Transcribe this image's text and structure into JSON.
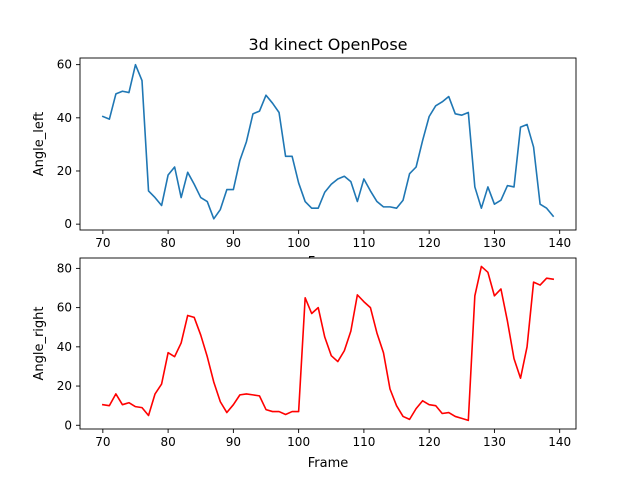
{
  "chart_data": [
    {
      "type": "line",
      "title": "3d kinect OpenPose",
      "xlabel": "Frame",
      "ylabel": "Angle_left",
      "xlim": [
        66.5,
        142.5
      ],
      "ylim": [
        -2.2,
        62.5
      ],
      "xticks": [
        70,
        80,
        90,
        100,
        110,
        120,
        130,
        140
      ],
      "yticks": [
        0,
        20,
        40,
        60
      ],
      "grid": false,
      "series": [
        {
          "color": "#1f77b4",
          "x": [
            70,
            71,
            72,
            73,
            74,
            75,
            76,
            77,
            78,
            79,
            80,
            81,
            82,
            83,
            84,
            85,
            86,
            87,
            88,
            89,
            90,
            91,
            92,
            93,
            94,
            95,
            96,
            97,
            98,
            99,
            100,
            101,
            102,
            103,
            104,
            105,
            106,
            107,
            108,
            109,
            110,
            111,
            112,
            113,
            114,
            115,
            116,
            117,
            118,
            119,
            120,
            121,
            122,
            123,
            124,
            125,
            126,
            127,
            128,
            129,
            130,
            131,
            132,
            133,
            134,
            135,
            136,
            137,
            138,
            139
          ],
          "y": [
            40.5,
            39.5,
            49,
            50,
            49.5,
            60,
            54,
            12.5,
            10,
            7,
            18.5,
            21.5,
            10,
            19.5,
            15,
            10,
            8.5,
            2,
            5.5,
            13,
            13,
            24,
            31,
            41.5,
            42.5,
            48.5,
            45.5,
            42,
            25.5,
            25.5,
            15.5,
            8.5,
            6,
            6,
            12,
            15,
            17,
            18,
            16,
            8.5,
            17,
            12.5,
            8.5,
            6.5,
            6.5,
            6,
            9,
            19,
            21.5,
            31.5,
            40.5,
            44.5,
            46,
            48,
            41.5,
            41,
            42,
            14,
            6,
            14,
            7.5,
            9,
            14.5,
            14,
            36.5,
            37.5,
            29,
            7.5,
            6,
            3
          ]
        }
      ]
    },
    {
      "type": "line",
      "title": "",
      "xlabel": "Frame",
      "ylabel": "Angle_right",
      "xlim": [
        66.5,
        142.5
      ],
      "ylim": [
        -1.9,
        85.3
      ],
      "xticks": [
        70,
        80,
        90,
        100,
        110,
        120,
        130,
        140
      ],
      "yticks": [
        0,
        20,
        40,
        60,
        80
      ],
      "grid": false,
      "series": [
        {
          "color": "#ff0000",
          "x": [
            70,
            71,
            72,
            73,
            74,
            75,
            76,
            77,
            78,
            79,
            80,
            81,
            82,
            83,
            84,
            85,
            86,
            87,
            88,
            89,
            90,
            91,
            92,
            93,
            94,
            95,
            96,
            97,
            98,
            99,
            100,
            101,
            102,
            103,
            104,
            105,
            106,
            107,
            108,
            109,
            110,
            111,
            112,
            113,
            114,
            115,
            116,
            117,
            118,
            119,
            120,
            121,
            122,
            123,
            124,
            125,
            126,
            127,
            128,
            129,
            130,
            131,
            132,
            133,
            134,
            135,
            136,
            137,
            138,
            139
          ],
          "y": [
            10.5,
            10,
            16,
            10.5,
            11.5,
            9.5,
            9,
            5,
            16,
            21,
            37,
            35,
            42,
            56,
            55,
            46,
            35,
            22,
            12,
            6.5,
            10.5,
            15.5,
            16,
            15.5,
            15,
            8,
            7,
            7,
            5.5,
            7,
            7,
            65,
            57,
            60,
            45,
            35.5,
            32.5,
            38,
            48,
            66.5,
            63,
            60,
            47,
            37,
            18.5,
            10,
            4.5,
            3,
            8.5,
            12.5,
            10.5,
            10,
            6,
            6.5,
            4.5,
            3.5,
            2.5,
            66,
            81,
            78,
            66,
            69.5,
            53,
            34,
            24,
            40,
            73,
            71.5,
            75,
            74.5
          ]
        }
      ]
    }
  ]
}
